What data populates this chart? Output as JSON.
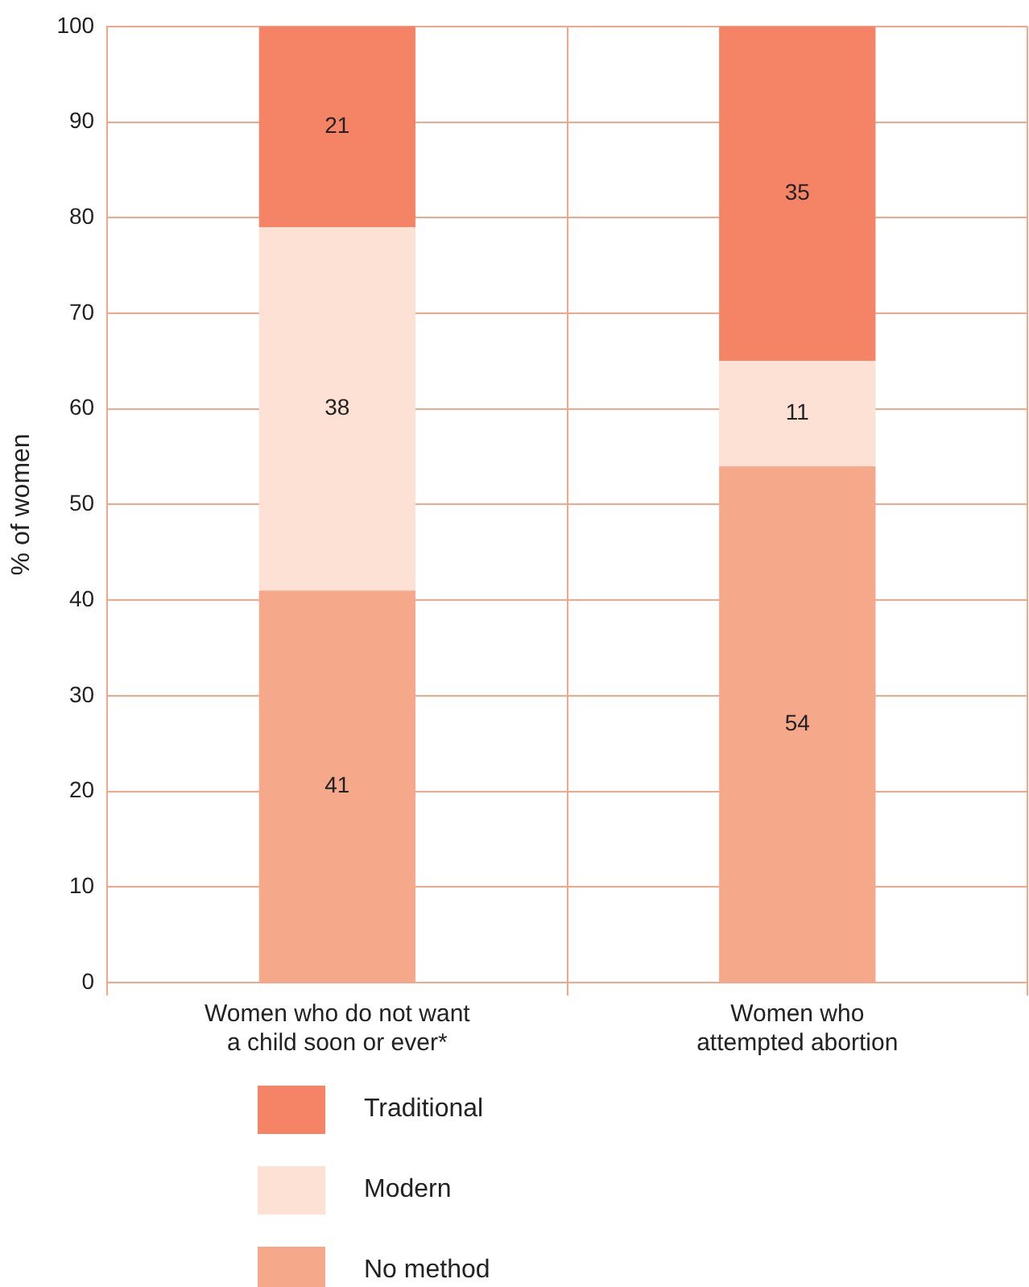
{
  "chart_data": {
    "type": "bar",
    "stacked": true,
    "ylabel": "% of women",
    "categories": [
      "Women who do not want\na child soon or ever*",
      "Women who\nattempted abortion"
    ],
    "series": [
      {
        "name": "No method",
        "color": "#f5a88a",
        "values": [
          41,
          54
        ]
      },
      {
        "name": "Modern",
        "color": "#fde1d4",
        "values": [
          38,
          11
        ]
      },
      {
        "name": "Traditional",
        "color": "#f58466",
        "values": [
          21,
          35
        ]
      }
    ],
    "ylim": [
      0,
      100
    ],
    "yticks": [
      0,
      10,
      20,
      30,
      40,
      50,
      60,
      70,
      80,
      90,
      100
    ],
    "grid": true,
    "legend": "bottom",
    "data_labels": true
  }
}
